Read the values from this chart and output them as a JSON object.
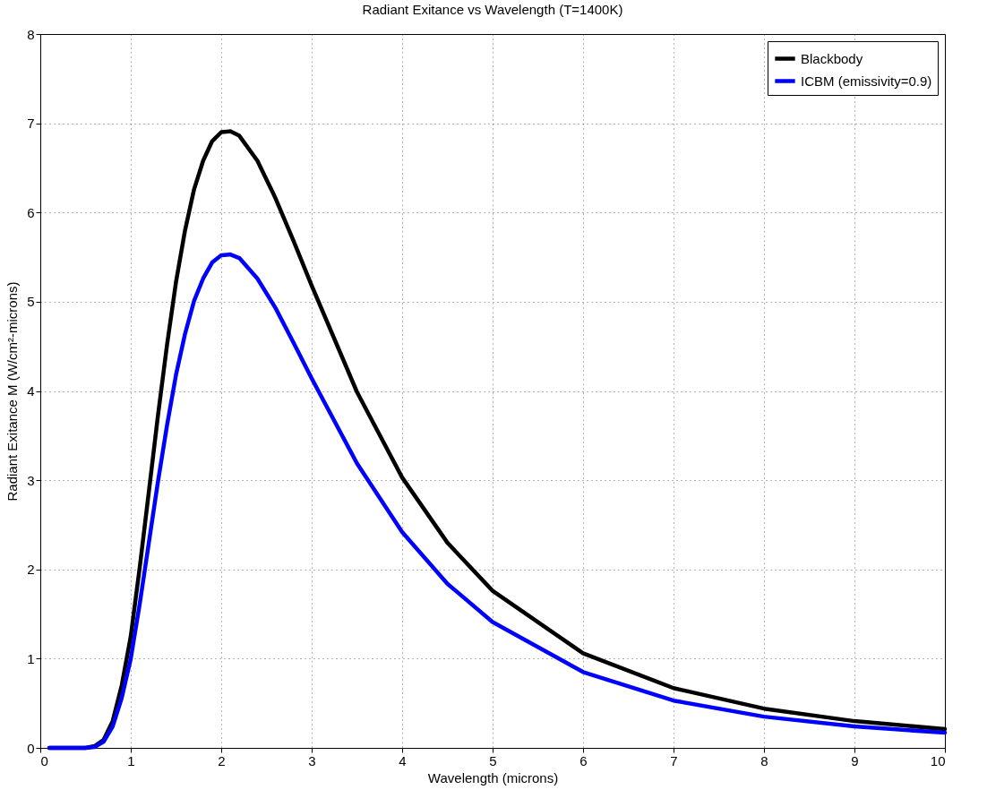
{
  "chart_data": {
    "type": "line",
    "title": "Radiant Exitance vs Wavelength (T=1400K)",
    "xlabel": "Wavelength (microns)",
    "ylabel": "Radiant Exitance M (W/cm²-microns)",
    "x": [
      0.1,
      0.5,
      0.6,
      0.7,
      0.8,
      0.9,
      1.0,
      1.1,
      1.2,
      1.3,
      1.4,
      1.5,
      1.6,
      1.7,
      1.8,
      1.9,
      2.0,
      2.1,
      2.2,
      2.4,
      2.6,
      2.8,
      3.0,
      3.5,
      4.0,
      4.5,
      5.0,
      6.0,
      7.0,
      8.0,
      9.0,
      10.0
    ],
    "series": [
      {
        "name": "Blackbody",
        "color": "#000000",
        "values": [
          0,
          0,
          0.02,
          0.09,
          0.3,
          0.7,
          1.25,
          2.03,
          2.87,
          3.72,
          4.51,
          5.22,
          5.8,
          6.26,
          6.58,
          6.8,
          6.9,
          6.91,
          6.86,
          6.58,
          6.16,
          5.68,
          5.18,
          3.99,
          3.03,
          2.3,
          1.76,
          1.06,
          0.67,
          0.44,
          0.3,
          0.21
        ]
      },
      {
        "name": "ICBM (emissivity=0.9)",
        "color": "#0000ff",
        "values": [
          0,
          0,
          0.01,
          0.07,
          0.24,
          0.56,
          1.0,
          1.62,
          2.3,
          2.98,
          3.61,
          4.18,
          4.64,
          5.01,
          5.26,
          5.44,
          5.52,
          5.53,
          5.49,
          5.26,
          4.93,
          4.54,
          4.14,
          3.19,
          2.42,
          1.84,
          1.41,
          0.85,
          0.53,
          0.35,
          0.24,
          0.17
        ]
      }
    ],
    "xlim": [
      0,
      10
    ],
    "xticks": [
      0,
      1,
      2,
      3,
      4,
      5,
      6,
      7,
      8,
      9,
      10
    ],
    "ylim": [
      0,
      8
    ],
    "yticks": [
      0,
      1,
      2,
      3,
      4,
      5,
      6,
      7,
      8
    ],
    "grid": true,
    "legend": "top right",
    "marker": "none",
    "line_style": "solid"
  }
}
